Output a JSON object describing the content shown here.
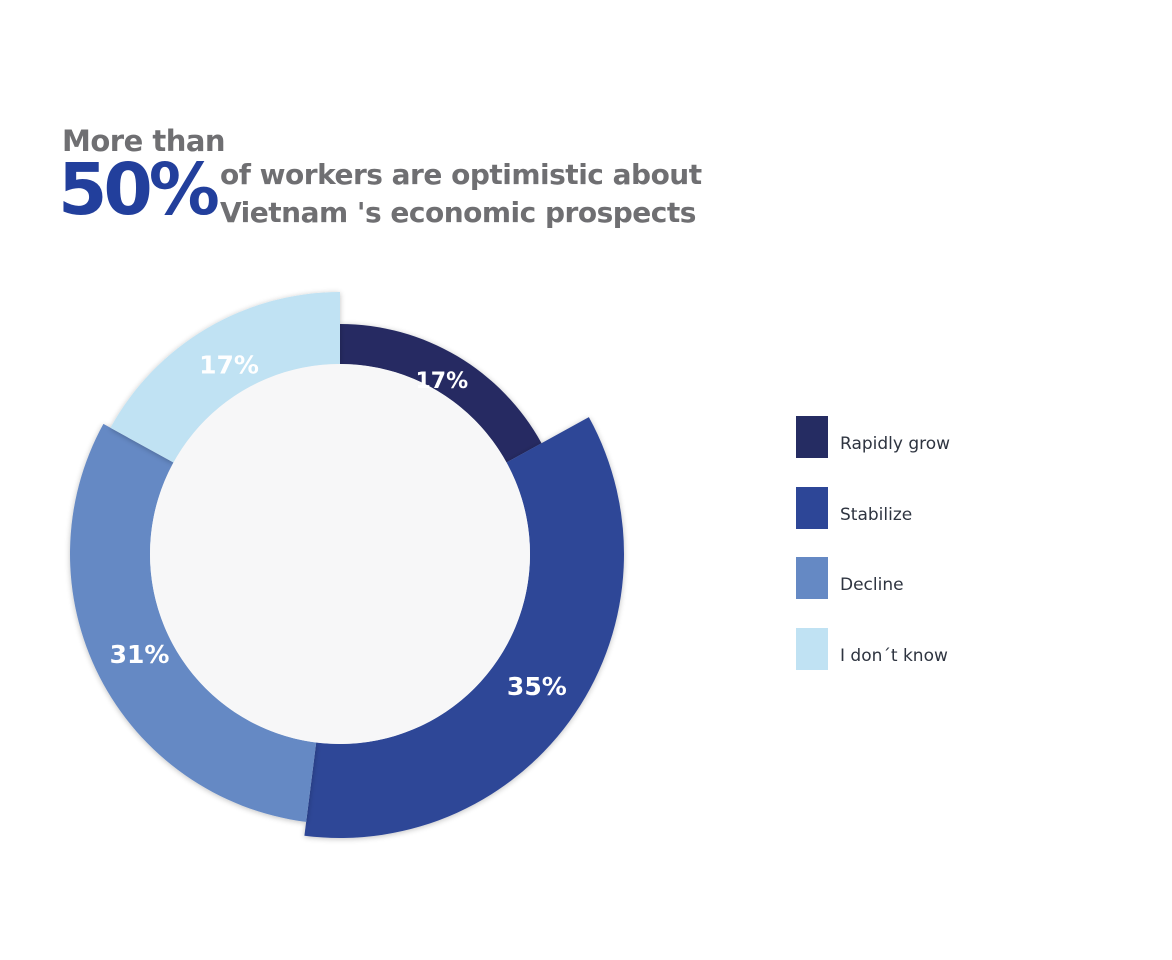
{
  "headline": {
    "prefix": "More than",
    "highlight": "50%",
    "line1": "of workers are optimistic about",
    "line2": "Vietnam 's economic prospects"
  },
  "chart_data": {
    "type": "pie",
    "style": "donut",
    "title": "More than 50% of workers are optimistic about Vietnam 's economic prospects",
    "categories": [
      "Rapidly grow",
      "Stabilize",
      "Decline",
      "I don´t know"
    ],
    "values": [
      17,
      35,
      31,
      17
    ],
    "labels": [
      "17%",
      "35%",
      "31%",
      "17%"
    ],
    "colors": [
      "#252c62",
      "#2d4697",
      "#6589c4",
      "#c0e2f3"
    ],
    "legend_position": "right"
  },
  "colors": {
    "accent": "#223f9c",
    "text_gray": "#6f6f72",
    "donut_center": "#f7f7f8"
  }
}
